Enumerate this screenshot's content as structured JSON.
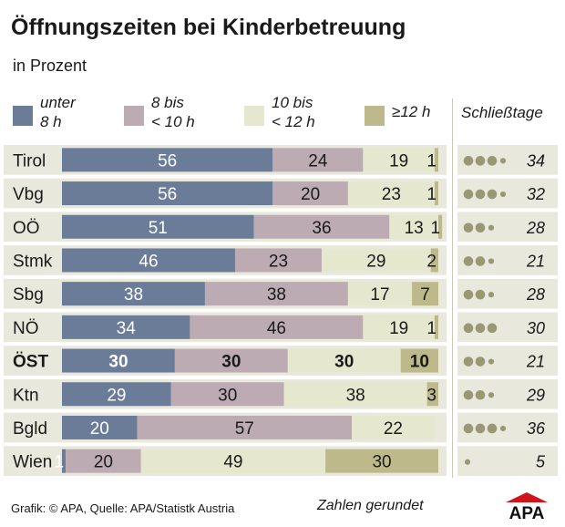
{
  "chart_data": {
    "type": "bar",
    "title": "Öffnungszeiten bei Kinderbetreuung",
    "subtitle": "in Prozent",
    "legend": [
      "unter\n8 h",
      "8 bis\n< 10 h",
      "10 bis\n< 12 h",
      "≥12 h"
    ],
    "closing_days_header": "Schließtage",
    "categories": [
      "Tirol",
      "Vbg",
      "OÖ",
      "Stmk",
      "Sbg",
      "NÖ",
      "ÖST",
      "Ktn",
      "Bgld",
      "Wien"
    ],
    "highlight": "ÖST",
    "series": [
      {
        "name": "unter 8 h",
        "color": "#6b7c99",
        "values": [
          56,
          56,
          51,
          46,
          38,
          34,
          30,
          29,
          20,
          1
        ]
      },
      {
        "name": "8 bis < 10 h",
        "color": "#bcabb3",
        "values": [
          24,
          20,
          36,
          23,
          38,
          46,
          30,
          30,
          57,
          20
        ]
      },
      {
        "name": "10 bis < 12 h",
        "color": "#e6e7cf",
        "values": [
          19,
          23,
          13,
          29,
          17,
          19,
          30,
          38,
          22,
          49
        ]
      },
      {
        "name": "≥12 h",
        "color": "#bdb98a",
        "values": [
          1,
          1,
          1,
          2,
          7,
          1,
          10,
          3,
          0,
          30
        ]
      }
    ],
    "closing_days": [
      34,
      32,
      28,
      21,
      28,
      30,
      21,
      29,
      36,
      5
    ],
    "xlim": [
      0,
      100
    ],
    "legend_position": "top",
    "row_band_color": "#e8e8dd",
    "dot_color": "#9a9874"
  },
  "footer": {
    "source": "Grafik: © APA, Quelle: APA/Statistk Austria",
    "note": "Zahlen gerundet",
    "logo": "APA"
  }
}
